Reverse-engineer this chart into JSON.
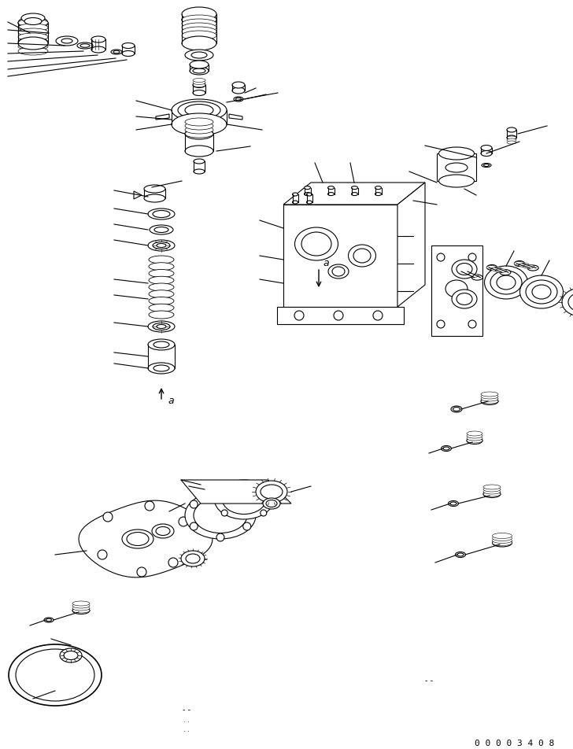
{
  "background_color": "#ffffff",
  "line_color": "#000000",
  "part_number": "0 0 0 0 3 4 0 8",
  "fig_width": 7.28,
  "fig_height": 9.52,
  "dpi": 100
}
